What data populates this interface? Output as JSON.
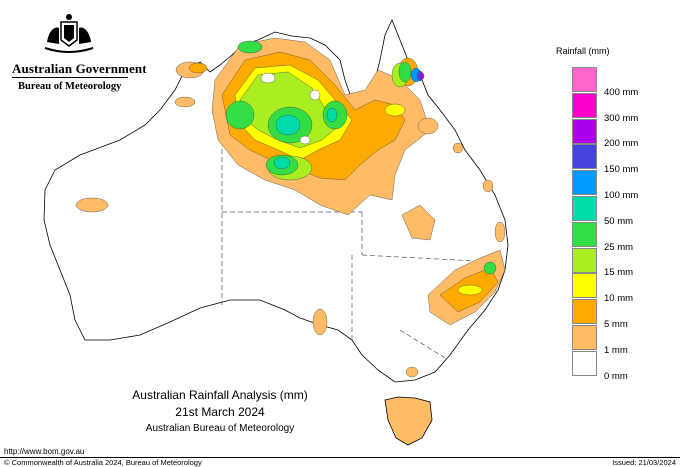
{
  "header": {
    "government": "Australian Government",
    "agency": "Bureau of Meteorology"
  },
  "legend": {
    "title": "Rainfall (mm)",
    "items": [
      {
        "label": "",
        "color": "#ff66cc"
      },
      {
        "label": "400 mm",
        "color": "#ff00cc"
      },
      {
        "label": "300 mm",
        "color": "#aa00ee"
      },
      {
        "label": "200 mm",
        "color": "#4444dd"
      },
      {
        "label": "150 mm",
        "color": "#0099ff"
      },
      {
        "label": "100 mm",
        "color": "#00ddaa"
      },
      {
        "label": "50 mm",
        "color": "#33dd44"
      },
      {
        "label": "25 mm",
        "color": "#aaee22"
      },
      {
        "label": "15 mm",
        "color": "#ffff00"
      },
      {
        "label": "10 mm",
        "color": "#ffaa00"
      },
      {
        "label": "5 mm",
        "color": "#ffbb66"
      },
      {
        "label": "1 mm",
        "color": "#ffffff"
      },
      {
        "label": "0 mm",
        "color": ""
      }
    ]
  },
  "caption": {
    "title": "Australian Rainfall Analysis (mm)",
    "date": "21st March 2024",
    "organisation": "Australian Bureau of Meteorology"
  },
  "footer": {
    "url": "http://www.bom.gov.au",
    "copyright": "© Commonwealth of Australia 2024, Bureau of Meteorology",
    "issued": "Issued: 21/03/2024"
  }
}
